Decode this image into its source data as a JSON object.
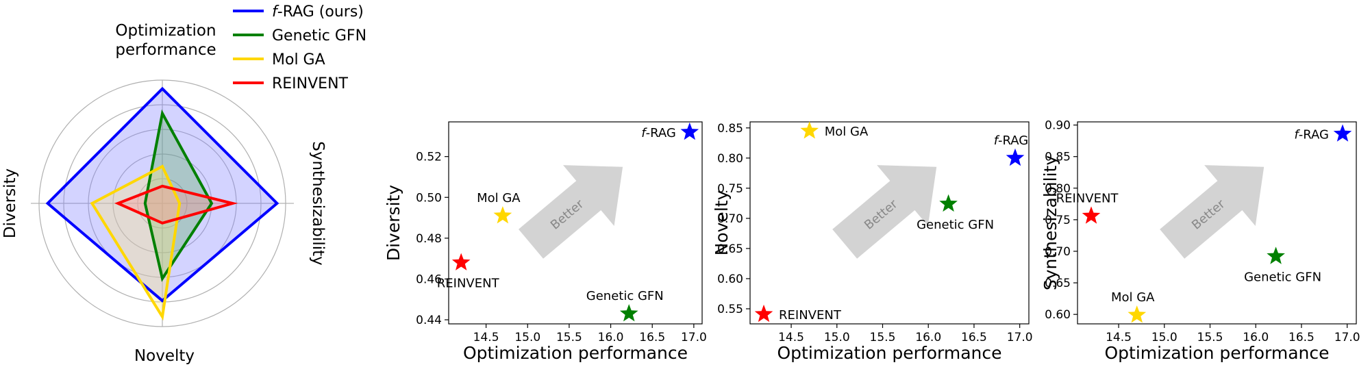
{
  "radar": {
    "axes": [
      "Optimization performance",
      "Synthesizability",
      "Novelty",
      "Diversity"
    ],
    "axis_label_lines": {
      "Optimization performance": [
        "Optimization",
        "performance"
      ],
      "Synthesizability": [
        "Synthesizability"
      ],
      "Novelty": [
        "Novelty"
      ],
      "Diversity": [
        "Diversity"
      ]
    },
    "legend": [
      {
        "name_prefix": "f",
        "name": "-RAG (ours)",
        "color": "#0000ff"
      },
      {
        "name_prefix": "",
        "name": "Genetic GFN",
        "color": "#008000"
      },
      {
        "name_prefix": "",
        "name": "Mol GA",
        "color": "#ffd700"
      },
      {
        "name_prefix": "",
        "name": "REINVENT",
        "color": "#ff0000"
      }
    ]
  },
  "chart_data": [
    {
      "type": "radar",
      "axes": [
        "Optimization performance",
        "Synthesizability",
        "Novelty",
        "Diversity"
      ],
      "rmax": 1.0,
      "grid_rings": [
        0.2,
        0.4,
        0.6,
        0.8,
        1.0
      ],
      "series": [
        {
          "name": "f-RAG (ours)",
          "color": "#0000ff",
          "fill": "#8080ff",
          "values": [
            0.93,
            0.93,
            0.79,
            0.93
          ]
        },
        {
          "name": "Genetic GFN",
          "color": "#008000",
          "fill": "#60b060",
          "values": [
            0.73,
            0.4,
            0.61,
            0.14
          ]
        },
        {
          "name": "Mol GA",
          "color": "#ffd700",
          "fill": "#ffe880",
          "values": [
            0.3,
            0.14,
            0.92,
            0.57
          ]
        },
        {
          "name": "REINVENT",
          "color": "#ff0000",
          "fill": "#ff9090",
          "values": [
            0.14,
            0.57,
            0.16,
            0.36
          ]
        }
      ]
    },
    {
      "type": "scatter",
      "xlabel": "Optimization performance",
      "ylabel": "Diversity",
      "xlim": [
        14.05,
        17.1
      ],
      "ylim": [
        0.438,
        0.537
      ],
      "xticks": [
        14.5,
        15.0,
        15.5,
        16.0,
        16.5,
        17.0
      ],
      "xtick_labels": [
        "14.5",
        "15.0",
        "15.5",
        "16.0",
        "16.5",
        "17.0"
      ],
      "yticks": [
        0.44,
        0.46,
        0.48,
        0.5,
        0.52
      ],
      "ytick_labels": [
        "0.44",
        "0.46",
        "0.48",
        "0.50",
        "0.52"
      ],
      "arrow_label": "Better",
      "points": [
        {
          "label_prefix": "f",
          "label": "-RAG",
          "x": 16.95,
          "y": 0.532,
          "color": "#0000ff",
          "anchor": "left"
        },
        {
          "label_prefix": "",
          "label": "Mol GA",
          "x": 14.7,
          "y": 0.491,
          "color": "#ffd700",
          "anchor": "above"
        },
        {
          "label_prefix": "",
          "label": "REINVENT",
          "x": 14.2,
          "y": 0.468,
          "color": "#ff0000",
          "anchor": "below"
        },
        {
          "label_prefix": "",
          "label": "Genetic GFN",
          "x": 16.22,
          "y": 0.443,
          "color": "#008000",
          "anchor": "above"
        }
      ]
    },
    {
      "type": "scatter",
      "xlabel": "Optimization performance",
      "ylabel": "Novelty",
      "xlim": [
        14.05,
        17.1
      ],
      "ylim": [
        0.525,
        0.86
      ],
      "xticks": [
        14.5,
        15.0,
        15.5,
        16.0,
        16.5,
        17.0
      ],
      "xtick_labels": [
        "14.5",
        "15.0",
        "15.5",
        "16.0",
        "16.5",
        "17.0"
      ],
      "yticks": [
        0.55,
        0.6,
        0.65,
        0.7,
        0.75,
        0.8,
        0.85
      ],
      "ytick_labels": [
        "0.55",
        "0.60",
        "0.65",
        "0.70",
        "0.75",
        "0.80",
        "0.85"
      ],
      "arrow_label": "Better",
      "points": [
        {
          "label_prefix": "",
          "label": "Mol GA",
          "x": 14.7,
          "y": 0.845,
          "color": "#ffd700",
          "anchor": "right"
        },
        {
          "label_prefix": "f",
          "label": "-RAG",
          "x": 16.95,
          "y": 0.8,
          "color": "#0000ff",
          "anchor": "above"
        },
        {
          "label_prefix": "",
          "label": "Genetic GFN",
          "x": 16.22,
          "y": 0.724,
          "color": "#008000",
          "anchor": "below"
        },
        {
          "label_prefix": "",
          "label": "REINVENT",
          "x": 14.2,
          "y": 0.541,
          "color": "#ff0000",
          "anchor": "right"
        }
      ]
    },
    {
      "type": "scatter",
      "xlabel": "Optimization performance",
      "ylabel": "Synthesizability",
      "xlim": [
        14.05,
        17.1
      ],
      "ylim": [
        0.585,
        0.905
      ],
      "xticks": [
        14.5,
        15.0,
        15.5,
        16.0,
        16.5,
        17.0
      ],
      "xtick_labels": [
        "14.5",
        "15.0",
        "15.5",
        "16.0",
        "16.5",
        "17.0"
      ],
      "yticks": [
        0.6,
        0.65,
        0.7,
        0.75,
        0.8,
        0.85,
        0.9
      ],
      "ytick_labels": [
        "0.60",
        "0.65",
        "0.70",
        "0.75",
        "0.80",
        "0.85",
        "0.90"
      ],
      "arrow_label": "Better",
      "points": [
        {
          "label_prefix": "f",
          "label": "-RAG",
          "x": 16.95,
          "y": 0.886,
          "color": "#0000ff",
          "anchor": "left"
        },
        {
          "label_prefix": "",
          "label": "REINVENT",
          "x": 14.2,
          "y": 0.756,
          "color": "#ff0000",
          "anchor": "above"
        },
        {
          "label_prefix": "",
          "label": "Genetic GFN",
          "x": 16.22,
          "y": 0.692,
          "color": "#008000",
          "anchor": "below"
        },
        {
          "label_prefix": "",
          "label": "Mol GA",
          "x": 14.7,
          "y": 0.599,
          "color": "#ffd700",
          "anchor": "above"
        }
      ]
    }
  ]
}
